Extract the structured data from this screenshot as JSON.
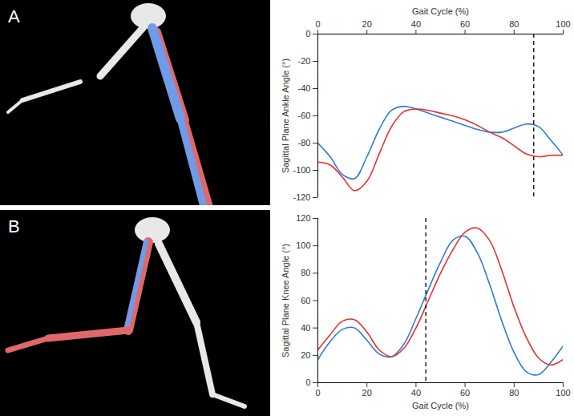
{
  "panels": [
    {
      "label": "A"
    },
    {
      "label": "B"
    }
  ],
  "chart_data": [
    {
      "type": "line",
      "x_label": "Gait Cycle (%)",
      "y_label": "Sagittal Plane Ankle Angle (°)",
      "x": [
        0,
        5,
        10,
        15,
        20,
        25,
        30,
        35,
        40,
        45,
        50,
        55,
        60,
        65,
        70,
        75,
        80,
        85,
        90,
        95,
        100
      ],
      "series": [
        {
          "color": "#2e7bd1",
          "values": [
            -80,
            -90,
            -103,
            -106,
            -90,
            -70,
            -56,
            -53,
            -55,
            -58,
            -61,
            -64,
            -67,
            -70,
            -72,
            -72,
            -69,
            -66,
            -68,
            -78,
            -89
          ]
        },
        {
          "color": "#e8312a",
          "values": [
            -94,
            -96,
            -105,
            -115,
            -108,
            -88,
            -68,
            -57,
            -55,
            -56,
            -58,
            -60,
            -63,
            -67,
            -72,
            -76,
            -82,
            -88,
            -90,
            -89,
            -89
          ]
        }
      ],
      "vline": 88,
      "xlim": [
        0,
        100
      ],
      "xticks": [
        0,
        20,
        40,
        60,
        80,
        100
      ],
      "ylim": [
        -120,
        0
      ],
      "yticks": [
        -120,
        -100,
        -80,
        -60,
        -40,
        -20,
        0
      ],
      "grid": false
    },
    {
      "type": "line",
      "x_label": "Gait Cycle (%)",
      "y_label": "Sagittal Plane Knee Angle (°)",
      "x": [
        0,
        5,
        10,
        15,
        20,
        25,
        30,
        35,
        40,
        45,
        50,
        55,
        60,
        65,
        70,
        75,
        80,
        85,
        90,
        95,
        100
      ],
      "series": [
        {
          "color": "#2e7bd1",
          "values": [
            17,
            30,
            39,
            40,
            31,
            21,
            19,
            28,
            47,
            68,
            88,
            104,
            107,
            95,
            72,
            45,
            22,
            8,
            6,
            15,
            27
          ]
        },
        {
          "color": "#e8312a",
          "values": [
            24,
            35,
            45,
            46,
            37,
            24,
            19,
            25,
            40,
            60,
            80,
            97,
            110,
            113,
            104,
            82,
            55,
            33,
            18,
            13,
            17
          ]
        }
      ],
      "vline": 44,
      "xlim": [
        0,
        100
      ],
      "xticks": [
        0,
        20,
        40,
        60,
        80,
        100
      ],
      "ylim": [
        0,
        120
      ],
      "yticks": [
        0,
        20,
        40,
        60,
        80,
        100,
        120
      ],
      "grid": false
    }
  ]
}
